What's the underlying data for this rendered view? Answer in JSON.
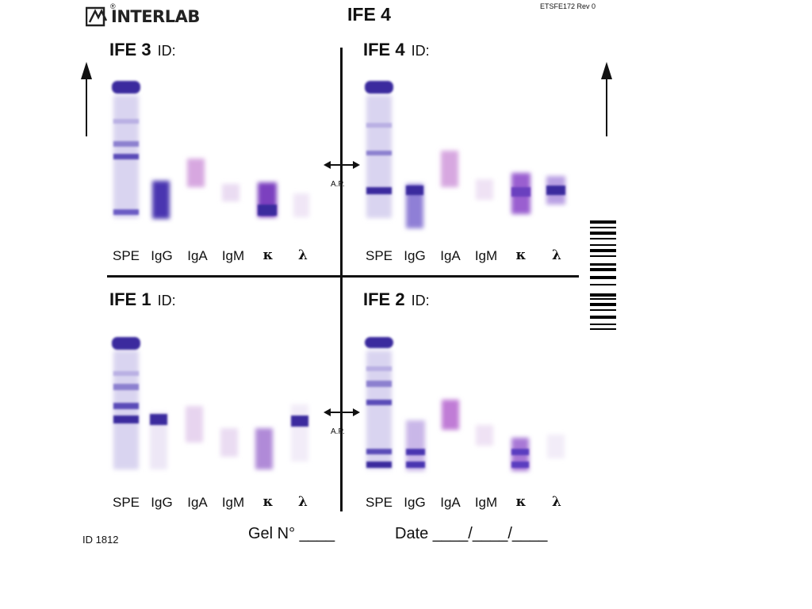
{
  "header": {
    "brand": "INTERLAB",
    "brand_mark": "®",
    "title": "IFE 4",
    "doc_ref": "ETSFE172  Rev 0"
  },
  "quadrants": {
    "ife3": {
      "name": "IFE 3",
      "id_label": "ID:"
    },
    "ife4": {
      "name": "IFE 4",
      "id_label": "ID:"
    },
    "ife1": {
      "name": "IFE 1",
      "id_label": "ID:"
    },
    "ife2": {
      "name": "IFE 2",
      "id_label": "ID:"
    }
  },
  "lanes": [
    "SPE",
    "IgG",
    "IgA",
    "IgM",
    "κ",
    "λ"
  ],
  "ap_label": "A.P.",
  "footer": {
    "id": "ID  1812",
    "gel": "Gel N° ____",
    "date": "Date ____/____/____"
  },
  "colors": {
    "band_dark": "#3b2a9e",
    "band_mid": "#6a5bc4",
    "band_light": "#b9b0e3",
    "band_pink": "#d7a7e0"
  }
}
